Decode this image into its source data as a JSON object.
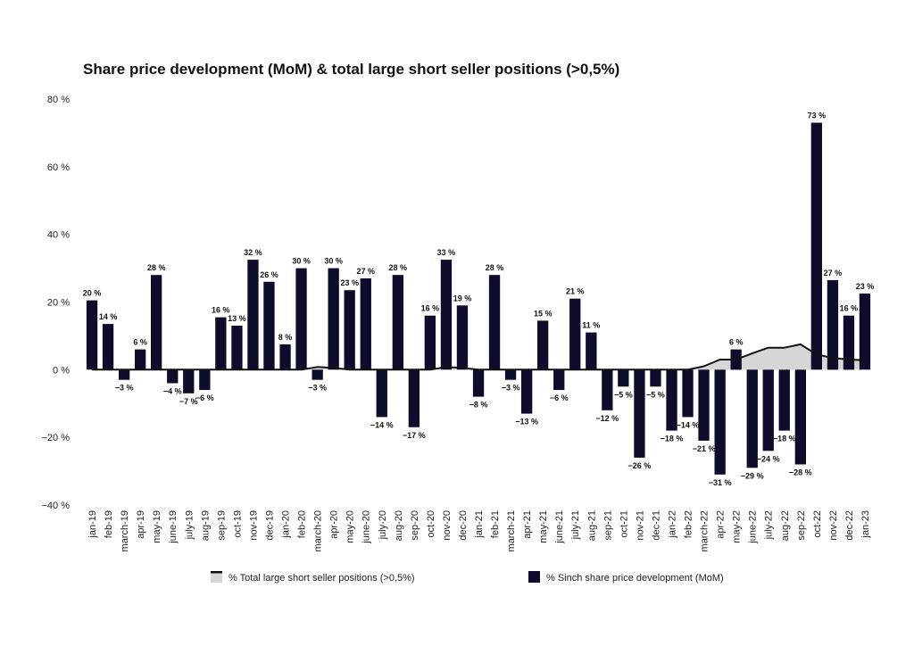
{
  "chart_data": {
    "type": "bar",
    "title": "Share price development (MoM) & total large short seller positions (>0,5%)",
    "xlabel": "",
    "ylabel": "",
    "ylim": [
      -40,
      80
    ],
    "yticks": [
      80,
      60,
      40,
      20,
      0,
      -20,
      -40
    ],
    "ytick_labels": [
      "80 %",
      "60 %",
      "40 %",
      "20 %",
      "0 %",
      "−20 %",
      "−40 %"
    ],
    "grid": false,
    "legend_position": "bottom",
    "categories": [
      "jan-19",
      "feb-19",
      "march-19",
      "apr-19",
      "may-19",
      "june-19",
      "july-19",
      "aug-19",
      "sep-19",
      "oct-19",
      "nov-19",
      "dec-19",
      "jan-20",
      "feb-20",
      "march-20",
      "apr-20",
      "may-20",
      "june-20",
      "july-20",
      "aug-20",
      "sep-20",
      "oct-20",
      "nov-20",
      "dec-20",
      "jan-21",
      "feb-21",
      "march-21",
      "apr-21",
      "may-21",
      "june-21",
      "july-21",
      "aug-21",
      "sep-21",
      "oct-21",
      "nov-21",
      "dec-21",
      "jan-22",
      "feb-22",
      "march-22",
      "apr-22",
      "may-22",
      "june-22",
      "july-22",
      "aug-22",
      "sep-22",
      "oct-22",
      "nov-22",
      "dec-22",
      "jan-23"
    ],
    "series": [
      {
        "name": "% Sinch share price development (MoM)",
        "kind": "bar",
        "color": "#0d0d2b",
        "values": [
          20.5,
          13.5,
          -3,
          6,
          28,
          -4,
          -7,
          -6,
          15.5,
          13,
          32.5,
          26,
          7.5,
          30,
          -3,
          30,
          23.5,
          27,
          -14,
          28,
          -17,
          16,
          32.5,
          19,
          -8,
          28,
          -3,
          -13,
          14.5,
          -6,
          21,
          11,
          -12,
          -5,
          -26,
          -5,
          -18,
          -14,
          -21,
          -31,
          6,
          -29,
          -24,
          -18,
          -28,
          73,
          26.5,
          16,
          22.5
        ],
        "labels": [
          "20 %",
          "14 %",
          "−3 %",
          "6 %",
          "28 %",
          "−4 %",
          "−7 %",
          "−6 %",
          "16 %",
          "13 %",
          "32 %",
          "26 %",
          "8 %",
          "30 %",
          "−3 %",
          "30 %",
          "23 %",
          "27 %",
          "−14 %",
          "28 %",
          "−17 %",
          "16 %",
          "33 %",
          "19 %",
          "−8 %",
          "28 %",
          "−3 %",
          "−13 %",
          "15 %",
          "−6 %",
          "21 %",
          "11 %",
          "−12 %",
          "−5 %",
          "−26 %",
          "−5 %",
          "−18 %",
          "−14 %",
          "−21 %",
          "−31 %",
          "6 %",
          "−29 %",
          "−24 %",
          "−18 %",
          "−28 %",
          "73 %",
          "27 %",
          "16 %",
          "23 %"
        ]
      },
      {
        "name": "% Total large short seller positions (>0,5%)",
        "kind": "area",
        "color": "#d6d6d6",
        "line_color": "#111111",
        "values": [
          0,
          0,
          0,
          0,
          0,
          0,
          0,
          0,
          0,
          0,
          0,
          0,
          0,
          0,
          0.8,
          0.5,
          0,
          0,
          0,
          0,
          0,
          0,
          0.8,
          0.5,
          0,
          0,
          0,
          0,
          0,
          0,
          0,
          0,
          0,
          0,
          0,
          0,
          0,
          0,
          1,
          3,
          3,
          4.8,
          6.5,
          6.5,
          7.5,
          4.5,
          3.5,
          3,
          2.8
        ]
      }
    ]
  }
}
